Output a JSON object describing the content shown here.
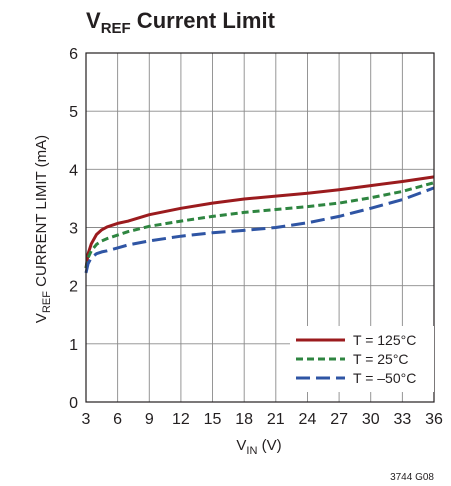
{
  "chart_data": {
    "type": "line",
    "title": {
      "main": "V",
      "sub": "REF",
      "rest": " Current Limit"
    },
    "xlabel": {
      "main": "V",
      "sub": "IN",
      "rest": " (V)"
    },
    "ylabel": {
      "main": "V",
      "sub": "REF",
      "rest": " CURRENT LIMIT (mA)"
    },
    "xlim": [
      3,
      36
    ],
    "ylim": [
      0,
      6
    ],
    "x_ticks": [
      3,
      6,
      9,
      12,
      15,
      18,
      21,
      24,
      27,
      30,
      33,
      36
    ],
    "y_ticks": [
      0,
      1,
      2,
      3,
      4,
      5,
      6
    ],
    "grid": true,
    "legend_placement": "bottom-right",
    "series": [
      {
        "name": "T = 125°C",
        "color": "#9b1b1e",
        "dash": "solid",
        "x": [
          3,
          3.2,
          3.5,
          4,
          4.5,
          5,
          6,
          7,
          9,
          12,
          15,
          18,
          21,
          24,
          27,
          30,
          33,
          36
        ],
        "y": [
          2.3,
          2.55,
          2.72,
          2.88,
          2.96,
          3.01,
          3.07,
          3.11,
          3.22,
          3.33,
          3.42,
          3.49,
          3.54,
          3.59,
          3.65,
          3.72,
          3.79,
          3.87
        ]
      },
      {
        "name": "T = 25°C",
        "color": "#2e8540",
        "dash": "dashed",
        "x": [
          3,
          3.2,
          3.5,
          4,
          4.5,
          5,
          6,
          7,
          9,
          12,
          15,
          18,
          21,
          24,
          27,
          30,
          33,
          36
        ],
        "y": [
          2.3,
          2.48,
          2.6,
          2.71,
          2.77,
          2.81,
          2.87,
          2.93,
          3.02,
          3.11,
          3.19,
          3.26,
          3.31,
          3.36,
          3.42,
          3.51,
          3.62,
          3.77
        ]
      },
      {
        "name": "T = –50°C",
        "color": "#2f55a4",
        "dash": "longdash",
        "x": [
          3,
          3.2,
          3.5,
          4,
          4.5,
          5,
          6,
          7,
          9,
          12,
          15,
          18,
          21,
          24,
          27,
          30,
          33,
          36
        ],
        "y": [
          2.22,
          2.38,
          2.48,
          2.55,
          2.58,
          2.6,
          2.65,
          2.7,
          2.77,
          2.85,
          2.91,
          2.95,
          3.0,
          3.08,
          3.19,
          3.33,
          3.48,
          3.68
        ]
      }
    ]
  },
  "figure_id": "3744 G08"
}
